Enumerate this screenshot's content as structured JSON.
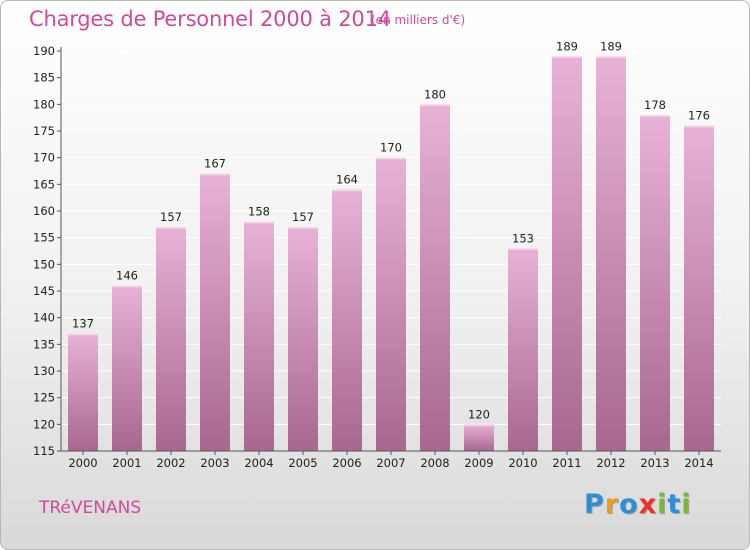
{
  "header": {
    "title": "Charges de Personnel 2000 à 2014",
    "subtitle": "(en milliers d'€)"
  },
  "footer": {
    "place": "TRéVENANS",
    "logo": {
      "letters": [
        "P",
        "r",
        "o",
        "x",
        "i",
        "t",
        "i"
      ],
      "colors": [
        "#2d8fd6",
        "#f09a1a",
        "#2d8fd6",
        "#e8352b",
        "#7cb733",
        "#2d8fd6",
        "#7cb733"
      ]
    }
  },
  "colors": {
    "bar_light": "#e8b2d6",
    "bar_dark": "#a8678f",
    "axis": "#555555",
    "grid": "#ffffff",
    "accent": "#d04a98"
  },
  "chart_data": {
    "type": "bar",
    "title": "Charges de Personnel 2000 à 2014",
    "subtitle": "(en milliers d'€)",
    "categories": [
      "2000",
      "2001",
      "2002",
      "2003",
      "2004",
      "2005",
      "2006",
      "2007",
      "2008",
      "2009",
      "2010",
      "2011",
      "2012",
      "2013",
      "2014"
    ],
    "values": [
      137,
      146,
      157,
      167,
      158,
      157,
      164,
      170,
      180,
      120,
      153,
      189,
      189,
      178,
      176
    ],
    "ylim": [
      115,
      190
    ],
    "yticks": [
      115,
      120,
      125,
      130,
      135,
      140,
      145,
      150,
      155,
      160,
      165,
      170,
      175,
      180,
      185,
      190
    ],
    "grid": true,
    "data_labels": true
  }
}
